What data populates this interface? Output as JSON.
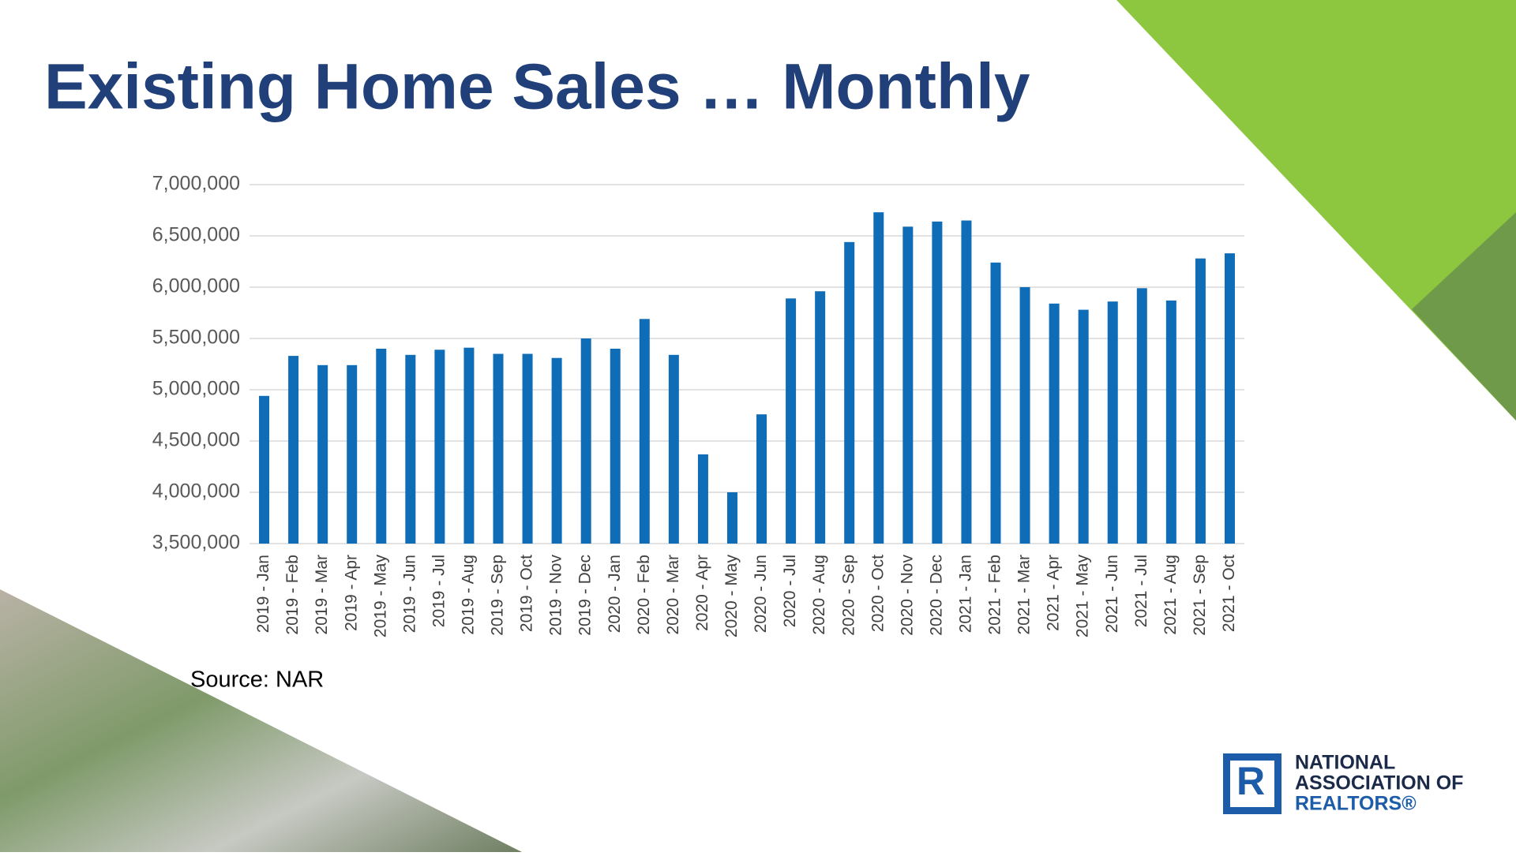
{
  "chart_data": {
    "type": "bar",
    "title": "Existing Home Sales … Monthly",
    "source": "Source: NAR",
    "categories": [
      "2019 - Jan",
      "2019 - Feb",
      "2019 - Mar",
      "2019 - Apr",
      "2019 - May",
      "2019 - Jun",
      "2019 - Jul",
      "2019 - Aug",
      "2019 - Sep",
      "2019 - Oct",
      "2019 - Nov",
      "2019 - Dec",
      "2020 - Jan",
      "2020 - Feb",
      "2020 - Mar",
      "2020 - Apr",
      "2020 - May",
      "2020 - Jun",
      "2020 - Jul",
      "2020 - Aug",
      "2020 - Sep",
      "2020 - Oct",
      "2020 - Nov",
      "2020 - Dec",
      "2021 - Jan",
      "2021 - Feb",
      "2021 - Mar",
      "2021 - Apr",
      "2021 - May",
      "2021 - Jun",
      "2021 - Jul",
      "2021 - Aug",
      "2021 - Sep",
      "2021 - Oct"
    ],
    "values": [
      4940000,
      5330000,
      5240000,
      5240000,
      5400000,
      5340000,
      5390000,
      5410000,
      5350000,
      5350000,
      5310000,
      5500000,
      5400000,
      5690000,
      5340000,
      4370000,
      4000000,
      4760000,
      5890000,
      5960000,
      6440000,
      6730000,
      6590000,
      6640000,
      6650000,
      6240000,
      6000000,
      5840000,
      5780000,
      5860000,
      5990000,
      5870000,
      6280000,
      6330000
    ],
    "color": "#0f6cb6",
    "ylim": [
      3500000,
      7000000
    ],
    "yticks": [
      {
        "value": 3500000,
        "label": "3,500,000"
      },
      {
        "value": 4000000,
        "label": "4,000,000"
      },
      {
        "value": 4500000,
        "label": "4,500,000"
      },
      {
        "value": 5000000,
        "label": "5,000,000"
      },
      {
        "value": 5500000,
        "label": "5,500,000"
      },
      {
        "value": 6000000,
        "label": "6,000,000"
      },
      {
        "value": 6500000,
        "label": "6,500,000"
      },
      {
        "value": 7000000,
        "label": "7,000,000"
      }
    ],
    "grid": true
  },
  "logo": {
    "lines": [
      "NATIONAL",
      "ASSOCIATION OF",
      "REALTORS®"
    ]
  }
}
